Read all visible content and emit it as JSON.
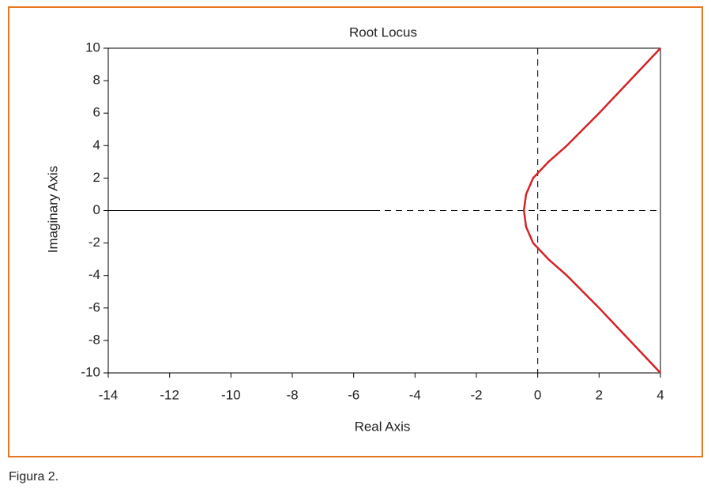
{
  "chart_data": {
    "type": "line",
    "title": "Root Locus",
    "xlabel": "Real Axis",
    "ylabel": "Imaginary Axis",
    "xlim": [
      -14,
      4
    ],
    "xticks": [
      -14,
      -12,
      -10,
      -8,
      -6,
      -4,
      -2,
      0,
      2,
      4
    ],
    "ylim": [
      -10,
      10
    ],
    "yticks": [
      -10,
      -8,
      -6,
      -4,
      -2,
      0,
      2,
      4,
      6,
      8,
      10
    ],
    "zero_lines": true,
    "series": [
      {
        "color": "#d62226",
        "x": [
          4,
          3,
          2,
          0.95,
          0.35,
          -0.15,
          -0.38,
          -0.45,
          -0.38,
          -0.15,
          0.35,
          0.95,
          2,
          3,
          4
        ],
        "values": [
          10,
          8,
          6,
          4,
          3,
          2,
          1,
          0,
          -1,
          -2,
          -3,
          -4,
          -6,
          -8,
          -10
        ]
      },
      {
        "color": "#000000",
        "x": [
          -14,
          -5.2
        ],
        "values": [
          0,
          0
        ]
      }
    ]
  },
  "caption": "Figura 2."
}
